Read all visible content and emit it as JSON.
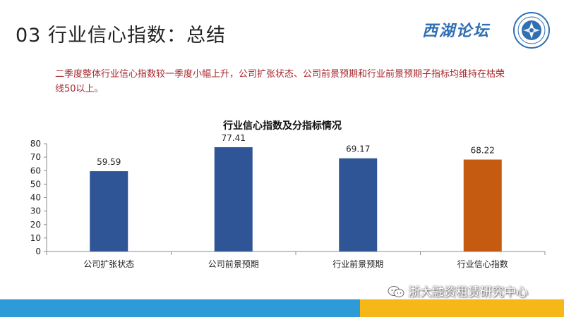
{
  "page": {
    "title": "03 行业信心指数：总结",
    "summary": "二季度整体行业信心指数较一季度小幅上升，公司扩张状态、公司前景预期和行业前景预期子指标均维持在枯荣线50以上。"
  },
  "brand": {
    "logo_text": "西湖论坛",
    "seal_icon": "forum-seal-icon"
  },
  "watermark": {
    "text": "浙大融资租赁研究中心",
    "icon": "wechat-icon"
  },
  "colors": {
    "bar_blue": "#2f5597",
    "bar_orange": "#c55a11",
    "footer_blue": "#2c9bd8",
    "footer_yellow": "#f6b719",
    "summary_text": "#a7282e"
  },
  "chart_data": {
    "type": "bar",
    "title": "行业信心指数及分指标情况",
    "xlabel": "",
    "ylabel": "",
    "categories": [
      "公司扩张状态",
      "公司前景预期",
      "行业前景预期",
      "行业信心指数"
    ],
    "values": [
      59.59,
      77.41,
      69.17,
      68.22
    ],
    "value_labels": [
      "59.59",
      "77.41",
      "69.17",
      "68.22"
    ],
    "bar_colors": [
      "#2f5597",
      "#2f5597",
      "#2f5597",
      "#c55a11"
    ],
    "ylim": [
      0,
      80
    ],
    "yticks": [
      0,
      10,
      20,
      30,
      40,
      50,
      60,
      70,
      80
    ],
    "grid": false,
    "legend": "none"
  }
}
